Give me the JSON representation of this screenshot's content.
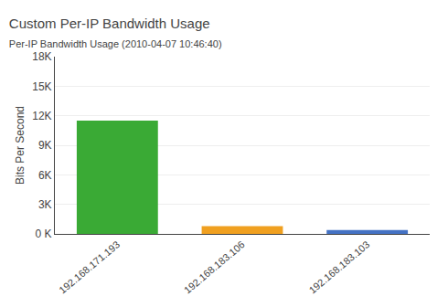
{
  "chart_data": {
    "type": "bar",
    "title": "Custom Per-IP Bandwidth Usage",
    "subtitle": "Per-IP Bandwidth Usage (2010-04-07 10:46:40)",
    "ylabel": "Bits Per Second",
    "categories": [
      "192.168.171.193",
      "192.168.183.106",
      "192.168.183.103"
    ],
    "values": [
      11500,
      800,
      400
    ],
    "colors": [
      "#3aaa35",
      "#f0a020",
      "#4472c4"
    ],
    "ylim": [
      0,
      18000
    ],
    "yticks": [
      {
        "value": 0,
        "label": "0 K"
      },
      {
        "value": 3000,
        "label": "3K"
      },
      {
        "value": 6000,
        "label": "6K"
      },
      {
        "value": 9000,
        "label": "9K"
      },
      {
        "value": 12000,
        "label": "12K"
      },
      {
        "value": 15000,
        "label": "15K"
      },
      {
        "value": 18000,
        "label": "18K"
      }
    ],
    "grid": true
  }
}
